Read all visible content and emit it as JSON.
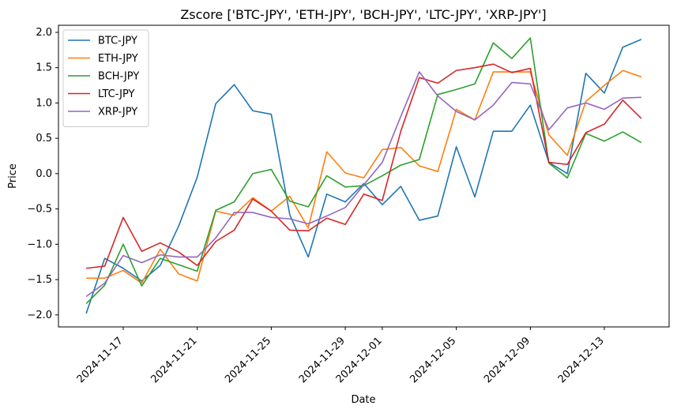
{
  "chart_data": {
    "type": "line",
    "title": "Zscore ['BTC-JPY', 'ETH-JPY', 'BCH-JPY', 'LTC-JPY', 'XRP-JPY']",
    "xlabel": "Date",
    "ylabel": "Price",
    "start_date": "2024-11-15",
    "dates": [
      "2024-11-15",
      "2024-11-16",
      "2024-11-17",
      "2024-11-18",
      "2024-11-19",
      "2024-11-20",
      "2024-11-21",
      "2024-11-22",
      "2024-11-23",
      "2024-11-24",
      "2024-11-25",
      "2024-11-26",
      "2024-11-27",
      "2024-11-28",
      "2024-11-29",
      "2024-11-30",
      "2024-12-01",
      "2024-12-02",
      "2024-12-03",
      "2024-12-04",
      "2024-12-05",
      "2024-12-06",
      "2024-12-07",
      "2024-12-08",
      "2024-12-09",
      "2024-12-10",
      "2024-12-11",
      "2024-12-12",
      "2024-12-13",
      "2024-12-14",
      "2024-12-15"
    ],
    "xticks": [
      "2024-11-17",
      "2024-11-21",
      "2024-11-25",
      "2024-11-29",
      "2024-12-01",
      "2024-12-05",
      "2024-12-09",
      "2024-12-13"
    ],
    "ylim": [
      -2.17,
      2.1
    ],
    "yticks": [
      -2.0,
      -1.5,
      -1.0,
      -0.5,
      0.0,
      0.5,
      1.0,
      1.5,
      2.0
    ],
    "ytick_labels": [
      "−2.0",
      "−1.5",
      "−1.0",
      "−0.5",
      "0.0",
      "0.5",
      "1.0",
      "1.5",
      "2.0"
    ],
    "grid": false,
    "legend_position": "top-left",
    "series": [
      {
        "name": "BTC-JPY",
        "color": "#1f77b4",
        "values": [
          -1.98,
          -1.2,
          -1.34,
          -1.52,
          -1.3,
          -0.74,
          -0.05,
          0.99,
          1.26,
          0.89,
          0.84,
          -0.58,
          -1.18,
          -0.29,
          -0.4,
          -0.14,
          -0.44,
          -0.18,
          -0.66,
          -0.6,
          0.38,
          -0.33,
          0.6,
          0.6,
          0.97,
          0.16,
          0.0,
          1.42,
          1.14,
          1.79,
          1.9
        ]
      },
      {
        "name": "ETH-JPY",
        "color": "#ff7f0e",
        "values": [
          -1.48,
          -1.48,
          -1.37,
          -1.55,
          -1.07,
          -1.42,
          -1.52,
          -0.53,
          -0.59,
          -0.34,
          -0.53,
          -0.32,
          -0.77,
          0.31,
          0.01,
          -0.06,
          0.34,
          0.37,
          0.11,
          0.03,
          0.91,
          0.76,
          1.44,
          1.44,
          1.44,
          0.55,
          0.26,
          1.02,
          1.25,
          1.46,
          1.37
        ]
      },
      {
        "name": "BCH-JPY",
        "color": "#2ca02c",
        "values": [
          -1.84,
          -1.58,
          -1.0,
          -1.59,
          -1.2,
          -1.29,
          -1.38,
          -0.52,
          -0.4,
          0.0,
          0.06,
          -0.39,
          -0.47,
          -0.03,
          -0.19,
          -0.17,
          -0.03,
          0.12,
          0.2,
          1.12,
          1.19,
          1.27,
          1.85,
          1.63,
          1.92,
          0.15,
          -0.06,
          0.57,
          0.46,
          0.59,
          0.44
        ]
      },
      {
        "name": "LTC-JPY",
        "color": "#d62728",
        "values": [
          -1.34,
          -1.31,
          -0.62,
          -1.1,
          -0.98,
          -1.11,
          -1.3,
          -0.96,
          -0.8,
          -0.36,
          -0.53,
          -0.8,
          -0.81,
          -0.63,
          -0.72,
          -0.29,
          -0.38,
          0.6,
          1.36,
          1.28,
          1.46,
          1.5,
          1.55,
          1.43,
          1.49,
          0.16,
          0.13,
          0.58,
          0.7,
          1.04,
          0.78
        ]
      },
      {
        "name": "XRP-JPY",
        "color": "#9467bd",
        "values": [
          -1.74,
          -1.55,
          -1.16,
          -1.26,
          -1.15,
          -1.18,
          -1.18,
          -0.91,
          -0.55,
          -0.55,
          -0.62,
          -0.64,
          -0.71,
          -0.6,
          -0.48,
          -0.16,
          0.16,
          0.81,
          1.44,
          1.1,
          0.88,
          0.76,
          0.97,
          1.29,
          1.27,
          0.62,
          0.93,
          1.0,
          0.91,
          1.07,
          1.08
        ]
      }
    ]
  }
}
